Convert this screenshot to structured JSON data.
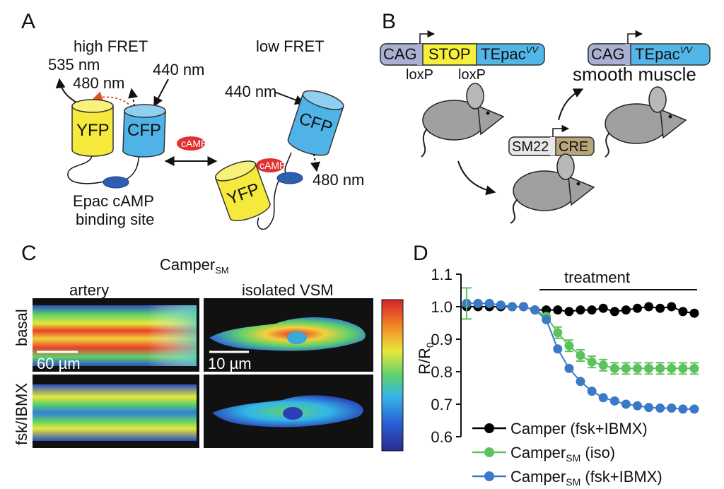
{
  "panels": {
    "a": {
      "letter": "A"
    },
    "b": {
      "letter": "B"
    },
    "c": {
      "letter": "C"
    },
    "d": {
      "letter": "D"
    }
  },
  "panel_a": {
    "state_high": "high FRET",
    "state_low": "low FRET",
    "wl_535": "535 nm",
    "wl_480_left": "480 nm",
    "wl_440_left": "440 nm",
    "wl_440_right": "440 nm",
    "wl_480_right": "480 nm",
    "yfp": "YFP",
    "cfp": "CFP",
    "camp": "cAMP",
    "site_line1": "Epac cAMP",
    "site_line2": "binding site"
  },
  "panel_b": {
    "cag": "CAG",
    "stop": "STOP",
    "tepac": "TEpac",
    "tepac_sup": "VV",
    "loxp_left": "loxP",
    "loxp_right": "loxP",
    "sm22": "SM22",
    "cre": "CRE",
    "smooth_muscle": "smooth muscle",
    "colors": {
      "cag": "#a9b0d4",
      "stop": "#f7f03a",
      "tepac": "#52b6e8",
      "sm22": "#e8e8e8",
      "cre": "#b8a67a",
      "mouse": "#a0a0a0"
    }
  },
  "panel_c": {
    "title_main": "Camper",
    "title_sub": "SM",
    "col_artery": "artery",
    "col_vsm": "isolated VSM",
    "row_basal": "basal",
    "row_fsk": "fsk/IBMX",
    "scale_artery": "60 µm",
    "scale_vsm": "10 µm"
  },
  "chart_data": {
    "type": "line",
    "ylabel": "R/R",
    "ylabel_sub": "0",
    "ylim": [
      0.6,
      1.1
    ],
    "yticks": [
      "0.6",
      "0.7",
      "0.8",
      "0.9",
      "1.0",
      "1.1"
    ],
    "treatment_label": "treatment",
    "treatment_start_index": 7,
    "x": [
      0,
      1,
      2,
      3,
      4,
      5,
      6,
      7,
      8,
      9,
      10,
      11,
      12,
      13,
      14,
      15,
      16,
      17,
      18,
      19,
      20
    ],
    "series": [
      {
        "name": "Camper (fsk+IBMX)",
        "name_sub": "",
        "name_suffix": "",
        "color": "#000000",
        "values": [
          1.0,
          1.0,
          1.0,
          1.0,
          1.0,
          1.0,
          0.99,
          0.99,
          0.99,
          0.985,
          0.99,
          0.99,
          0.995,
          0.985,
          0.99,
          0.995,
          1.0,
          0.995,
          1.0,
          0.985,
          0.98
        ]
      },
      {
        "name": "Camper",
        "name_sub": "SM",
        "name_suffix": " (iso)",
        "color": "#5cc25c",
        "values": [
          1.01,
          1.01,
          1.01,
          1.005,
          1.0,
          1.0,
          0.99,
          0.97,
          0.92,
          0.88,
          0.85,
          0.83,
          0.82,
          0.81,
          0.81,
          0.81,
          0.81,
          0.81,
          0.81,
          0.81,
          0.81
        ]
      },
      {
        "name": "Camper",
        "name_sub": "SM",
        "name_suffix": " (fsk+IBMX)",
        "color": "#3a78c8",
        "values": [
          1.01,
          1.01,
          1.01,
          1.005,
          1.0,
          1.0,
          0.99,
          0.96,
          0.87,
          0.81,
          0.77,
          0.74,
          0.72,
          0.71,
          0.7,
          0.695,
          0.69,
          0.688,
          0.688,
          0.685,
          0.685
        ]
      }
    ]
  }
}
